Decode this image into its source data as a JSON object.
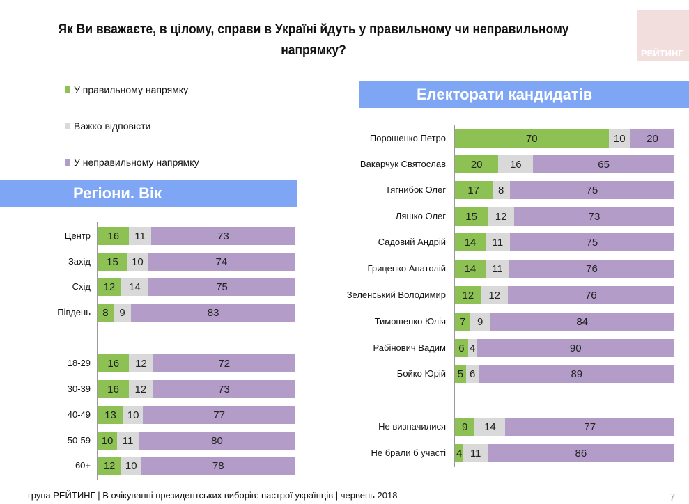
{
  "title": "Як Ви вважаєте, в цілому, справи в Україні йдуть у правильному чи неправильному напрямку?",
  "logo_text": "РЕЙТИНГ",
  "legend": [
    {
      "label": "У правильному напрямку",
      "color": "#8dc153"
    },
    {
      "label": "Важко відповісти",
      "color": "#d9d9d9"
    },
    {
      "label": "У неправильному напрямку",
      "color": "#b49cc9"
    }
  ],
  "footer": "група РЕЙТИНГ  | В очікуванні президентських виборів: настрої українців |  червень 2018",
  "page_number": "7",
  "chart_data": [
    {
      "type": "bar",
      "orientation": "horizontal",
      "stacked": true,
      "title": "Регіони. Вік",
      "categories": [
        "Центр",
        "Захід",
        "Схід",
        "Південь",
        "18-29",
        "30-39",
        "40-49",
        "50-59",
        "60+"
      ],
      "series": [
        {
          "name": "У правильному напрямку",
          "color": "#8dc153",
          "values": [
            16,
            15,
            12,
            8,
            16,
            16,
            13,
            10,
            12
          ]
        },
        {
          "name": "Важко відповісти",
          "color": "#d9d9d9",
          "values": [
            11,
            10,
            14,
            9,
            12,
            12,
            10,
            11,
            10
          ]
        },
        {
          "name": "У неправильному напрямку",
          "color": "#b49cc9",
          "values": [
            73,
            74,
            75,
            83,
            72,
            73,
            77,
            80,
            78
          ]
        }
      ]
    },
    {
      "type": "bar",
      "orientation": "horizontal",
      "stacked": true,
      "title": "Електорати кандидатів",
      "categories": [
        "Порошенко Петро",
        "Вакарчук Святослав",
        "Тягнибок Олег",
        "Ляшко Олег",
        "Садовий Андрій",
        "Гриценко Анатолій",
        "Зеленський Володимир",
        "Тимошенко Юлія",
        "Рабінович Вадим",
        "Бойко Юрій",
        "Не визначилися",
        "Не брали б участі"
      ],
      "series": [
        {
          "name": "У правильному напрямку",
          "color": "#8dc153",
          "values": [
            70,
            20,
            17,
            15,
            14,
            14,
            12,
            7,
            6,
            5,
            9,
            4
          ]
        },
        {
          "name": "Важко відповісти",
          "color": "#d9d9d9",
          "values": [
            10,
            16,
            8,
            12,
            11,
            11,
            12,
            9,
            4,
            6,
            14,
            11
          ]
        },
        {
          "name": "У неправильному напрямку",
          "color": "#b49cc9",
          "values": [
            20,
            65,
            75,
            73,
            75,
            76,
            76,
            84,
            90,
            89,
            77,
            86
          ]
        }
      ]
    }
  ]
}
